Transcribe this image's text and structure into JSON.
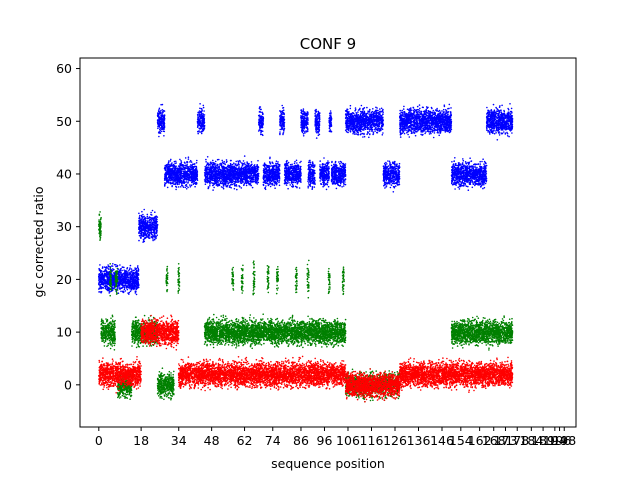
{
  "chart_data": {
    "type": "scatter",
    "title": "CONF 9",
    "xlabel": "sequence position",
    "ylabel": "gc corrected ratio",
    "xlim": [
      -8,
      203
    ],
    "ylim": [
      -8,
      62
    ],
    "x_ticks": [
      0,
      18,
      34,
      48,
      62,
      74,
      86,
      96,
      106,
      116,
      126,
      136,
      146,
      154,
      162,
      168,
      173,
      178,
      184,
      189,
      194,
      196,
      198
    ],
    "x_tick_labels": [
      "0",
      "18",
      "34",
      "48",
      "62",
      "74",
      "86",
      "96",
      "106",
      "116",
      "126",
      "136",
      "146",
      "154",
      "162",
      "168",
      "173",
      "178",
      "184",
      "189",
      "194",
      "196",
      "198"
    ],
    "y_ticks": [
      0,
      10,
      20,
      30,
      40,
      50,
      60
    ],
    "y_tick_labels": [
      "0",
      "10",
      "20",
      "30",
      "40",
      "50",
      "60"
    ],
    "grid": false,
    "colors": {
      "blue": "#0000ff",
      "green": "#008000",
      "red": "#ff0000"
    },
    "series": [
      {
        "color": "blue",
        "segments": [
          {
            "x": [
              0,
              17
            ],
            "y": 20
          },
          {
            "x": [
              17,
              25
            ],
            "y": 30
          },
          {
            "x": [
              25,
              28
            ],
            "y": 50
          },
          {
            "x": [
              28,
              42
            ],
            "y": 40
          },
          {
            "x": [
              42,
              45
            ],
            "y": 50
          },
          {
            "x": [
              45,
              68
            ],
            "y": 40
          },
          {
            "x": [
              68,
              70
            ],
            "y": 50
          },
          {
            "x": [
              70,
              77
            ],
            "y": 40
          },
          {
            "x": [
              77,
              79
            ],
            "y": 50
          },
          {
            "x": [
              79,
              86
            ],
            "y": 40
          },
          {
            "x": [
              86,
              89
            ],
            "y": 50
          },
          {
            "x": [
              89,
              92
            ],
            "y": 40
          },
          {
            "x": [
              92,
              94
            ],
            "y": 50
          },
          {
            "x": [
              94,
              98
            ],
            "y": 40
          },
          {
            "x": [
              98,
              99
            ],
            "y": 50
          },
          {
            "x": [
              99,
              105
            ],
            "y": 40
          },
          {
            "x": [
              105,
              121
            ],
            "y": 50
          },
          {
            "x": [
              121,
              128
            ],
            "y": 40
          },
          {
            "x": [
              128,
              150
            ],
            "y": 50
          },
          {
            "x": [
              150,
              165
            ],
            "y": 40
          },
          {
            "x": [
              165,
              176
            ],
            "y": 50
          }
        ]
      },
      {
        "color": "green",
        "segments": [
          {
            "x": [
              0,
              1
            ],
            "y": 30
          },
          {
            "x": [
              1,
              7
            ],
            "y": 10
          },
          {
            "x": [
              7,
              8
            ],
            "y": 20
          },
          {
            "x": [
              8,
              14
            ],
            "y": 0
          },
          {
            "x": [
              14,
              25
            ],
            "y": 10
          },
          {
            "x": [
              25,
              28
            ],
            "y": 0
          },
          {
            "x": [
              28,
              32
            ],
            "y": 0
          },
          {
            "x": [
              45,
              56
            ],
            "y": 10
          },
          {
            "x": [
              56,
              60
            ],
            "y": 10
          },
          {
            "x": [
              60,
              64
            ],
            "y": 10
          },
          {
            "x": [
              64,
              72
            ],
            "y": 10
          },
          {
            "x": [
              72,
              80
            ],
            "y": 10
          },
          {
            "x": [
              80,
              86
            ],
            "y": 10
          },
          {
            "x": [
              86,
              92
            ],
            "y": 10
          },
          {
            "x": [
              92,
              105
            ],
            "y": 10
          },
          {
            "x": [
              105,
              128
            ],
            "y": 0
          },
          {
            "x": [
              150,
              176
            ],
            "y": 10
          }
        ],
        "spikes": [
          {
            "x": 5,
            "y": 20
          },
          {
            "x": 29,
            "y": 20
          },
          {
            "x": 34,
            "y": 20
          },
          {
            "x": 57,
            "y": 20
          },
          {
            "x": 61,
            "y": 20
          },
          {
            "x": 66,
            "y": 20
          },
          {
            "x": 72,
            "y": 20
          },
          {
            "x": 76,
            "y": 20
          },
          {
            "x": 84,
            "y": 20
          },
          {
            "x": 89,
            "y": 20
          },
          {
            "x": 98,
            "y": 20
          },
          {
            "x": 104,
            "y": 20
          }
        ]
      },
      {
        "color": "red",
        "segments": [
          {
            "x": [
              0,
              18
            ],
            "y": 2
          },
          {
            "x": [
              18,
              34
            ],
            "y": 10
          },
          {
            "x": [
              34,
              105
            ],
            "y": 2
          },
          {
            "x": [
              105,
              128
            ],
            "y": 0
          },
          {
            "x": [
              128,
              176
            ],
            "y": 2
          }
        ]
      }
    ]
  }
}
